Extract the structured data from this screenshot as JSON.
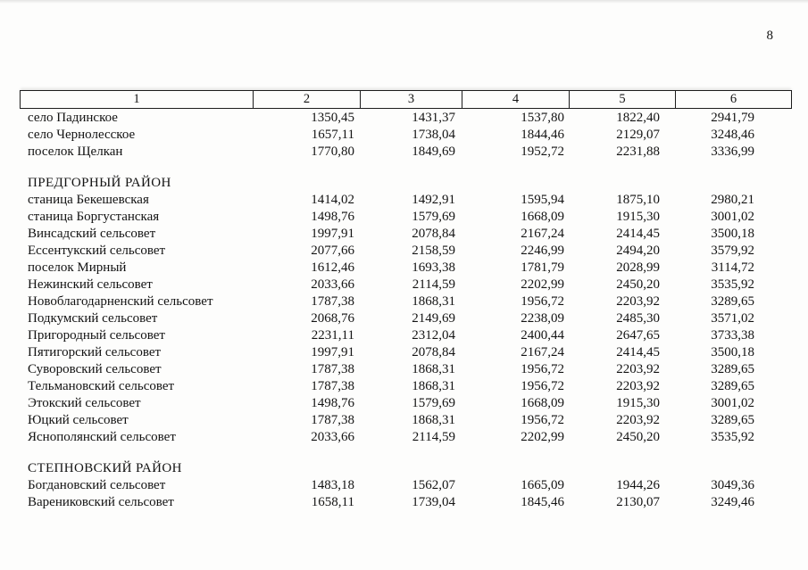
{
  "page": {
    "number": "8"
  },
  "table": {
    "header": [
      "1",
      "2",
      "3",
      "4",
      "5",
      "6"
    ],
    "sections": [
      {
        "title": "",
        "rows": [
          {
            "name": "село Падинское",
            "values": [
              "1350,45",
              "1431,37",
              "1537,80",
              "1822,40",
              "2941,79"
            ]
          },
          {
            "name": "село Чернолесское",
            "values": [
              "1657,11",
              "1738,04",
              "1844,46",
              "2129,07",
              "3248,46"
            ]
          },
          {
            "name": "поселок Щелкан",
            "values": [
              "1770,80",
              "1849,69",
              "1952,72",
              "2231,88",
              "3336,99"
            ]
          }
        ]
      },
      {
        "title": "ПРЕДГОРНЫЙ РАЙОН",
        "rows": [
          {
            "name": "станица Бекешевская",
            "values": [
              "1414,02",
              "1492,91",
              "1595,94",
              "1875,10",
              "2980,21"
            ]
          },
          {
            "name": "станица Боргустанская",
            "values": [
              "1498,76",
              "1579,69",
              "1668,09",
              "1915,30",
              "3001,02"
            ]
          },
          {
            "name": "Винсадский сельсовет",
            "values": [
              "1997,91",
              "2078,84",
              "2167,24",
              "2414,45",
              "3500,18"
            ]
          },
          {
            "name": "Ессентукский сельсовет",
            "values": [
              "2077,66",
              "2158,59",
              "2246,99",
              "2494,20",
              "3579,92"
            ]
          },
          {
            "name": "поселок Мирный",
            "values": [
              "1612,46",
              "1693,38",
              "1781,79",
              "2028,99",
              "3114,72"
            ]
          },
          {
            "name": "Нежинский сельсовет",
            "values": [
              "2033,66",
              "2114,59",
              "2202,99",
              "2450,20",
              "3535,92"
            ]
          },
          {
            "name": "Новоблагодарненский сельсовет",
            "values": [
              "1787,38",
              "1868,31",
              "1956,72",
              "2203,92",
              "3289,65"
            ]
          },
          {
            "name": "Подкумский сельсовет",
            "values": [
              "2068,76",
              "2149,69",
              "2238,09",
              "2485,30",
              "3571,02"
            ]
          },
          {
            "name": "Пригородный сельсовет",
            "values": [
              "2231,11",
              "2312,04",
              "2400,44",
              "2647,65",
              "3733,38"
            ]
          },
          {
            "name": "Пятигорский сельсовет",
            "values": [
              "1997,91",
              "2078,84",
              "2167,24",
              "2414,45",
              "3500,18"
            ]
          },
          {
            "name": "Суворовский сельсовет",
            "values": [
              "1787,38",
              "1868,31",
              "1956,72",
              "2203,92",
              "3289,65"
            ]
          },
          {
            "name": "Тельмановский сельсовет",
            "values": [
              "1787,38",
              "1868,31",
              "1956,72",
              "2203,92",
              "3289,65"
            ]
          },
          {
            "name": "Этокский сельсовет",
            "values": [
              "1498,76",
              "1579,69",
              "1668,09",
              "1915,30",
              "3001,02"
            ]
          },
          {
            "name": "Юцкий сельсовет",
            "values": [
              "1787,38",
              "1868,31",
              "1956,72",
              "2203,92",
              "3289,65"
            ]
          },
          {
            "name": "Яснополянский сельсовет",
            "values": [
              "2033,66",
              "2114,59",
              "2202,99",
              "2450,20",
              "3535,92"
            ]
          }
        ]
      },
      {
        "title": "СТЕПНОВСКИЙ РАЙОН",
        "rows": [
          {
            "name": "Богдановский сельсовет",
            "values": [
              "1483,18",
              "1562,07",
              "1665,09",
              "1944,26",
              "3049,36"
            ]
          },
          {
            "name": "Варениковский сельсовет",
            "values": [
              "1658,11",
              "1739,04",
              "1845,46",
              "2130,07",
              "3249,46"
            ]
          }
        ]
      }
    ]
  }
}
